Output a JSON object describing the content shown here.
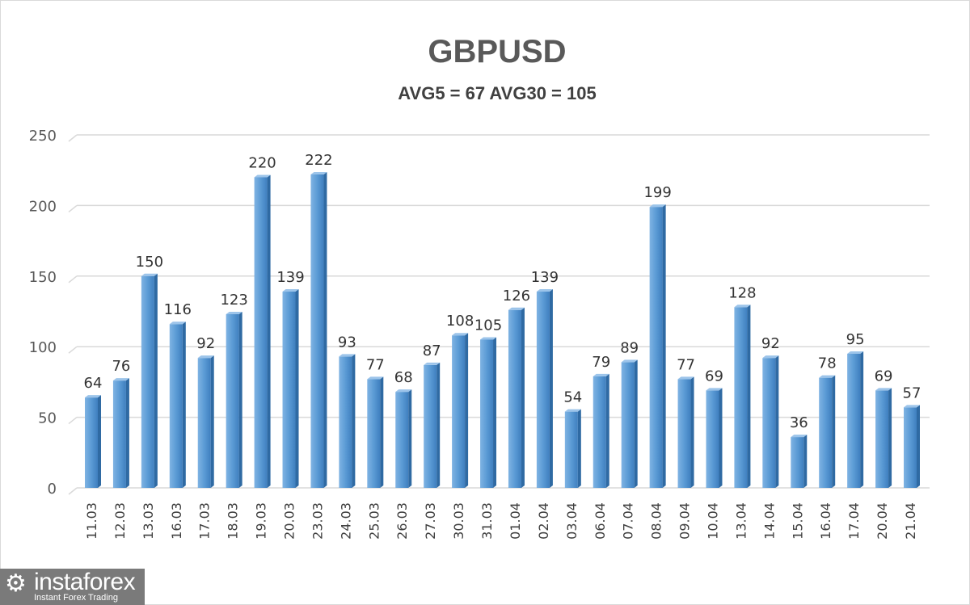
{
  "chart_data": {
    "type": "bar",
    "title": "GBPUSD",
    "subtitle": "AVG5 = 67 AVG30 = 105",
    "xlabel": "",
    "ylabel": "",
    "ylim": [
      0,
      250
    ],
    "yticks": [
      0,
      50,
      100,
      150,
      200,
      250
    ],
    "grid": true,
    "categories": [
      "11.03",
      "12.03",
      "13.03",
      "16.03",
      "17.03",
      "18.03",
      "19.03",
      "20.03",
      "23.03",
      "24.03",
      "25.03",
      "26.03",
      "27.03",
      "30.03",
      "31.03",
      "01.04",
      "02.04",
      "03.04",
      "06.04",
      "07.04",
      "08.04",
      "09.04",
      "10.04",
      "13.04",
      "14.04",
      "15.04",
      "16.04",
      "17.04",
      "20.04",
      "21.04"
    ],
    "values": [
      64,
      76,
      150,
      116,
      92,
      123,
      220,
      139,
      222,
      93,
      77,
      68,
      87,
      108,
      105,
      126,
      139,
      54,
      79,
      89,
      199,
      77,
      69,
      128,
      92,
      36,
      78,
      95,
      69,
      57
    ],
    "bar_color": "#5b9bd5"
  },
  "watermark": {
    "brand": "instaforex",
    "tagline": "Instant Forex Trading"
  }
}
